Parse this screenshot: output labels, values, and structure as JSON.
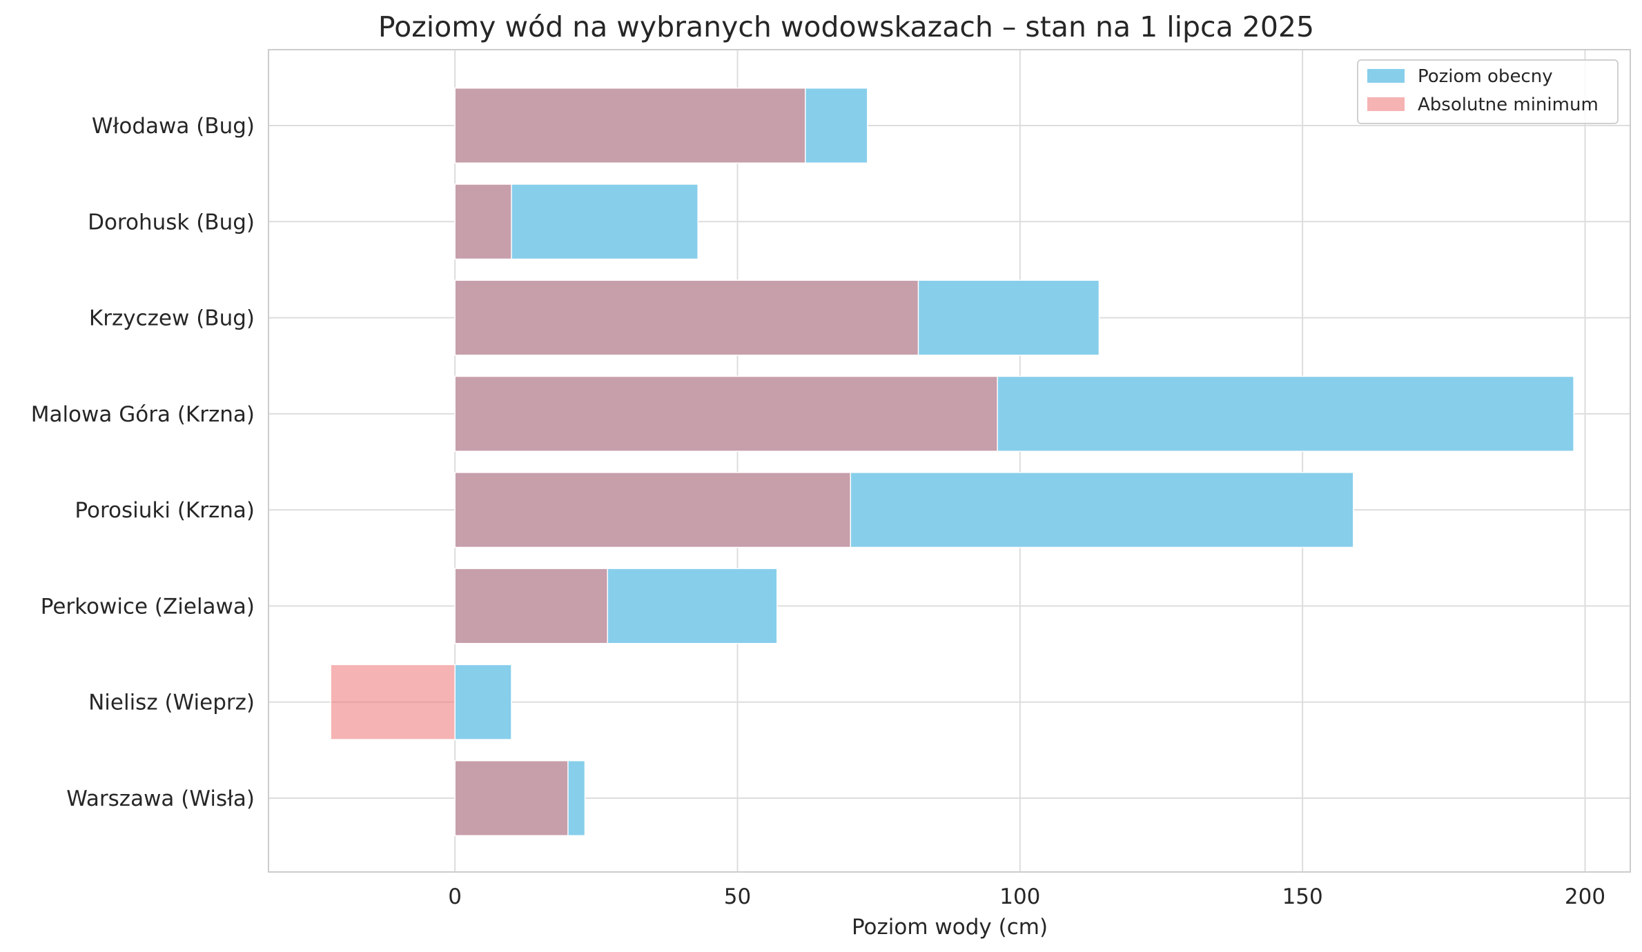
{
  "chart_data": {
    "type": "bar",
    "orientation": "horizontal",
    "title": "Poziomy wód na wybranych wodowskazach – stan na 1 lipca 2025",
    "xlabel": "Poziom wody (cm)",
    "ylabel": "",
    "xlim": [
      -33,
      208
    ],
    "xticks": [
      0,
      50,
      100,
      150,
      200
    ],
    "grid": true,
    "legend_position": "top-right",
    "categories": [
      "Włodawa (Bug)",
      "Dorohusk (Bug)",
      "Krzyczew (Bug)",
      "Malowa Góra (Krzna)",
      "Porosiuki (Krzna)",
      "Perkowice (Zielawa)",
      "Nielisz (Wieprz)",
      "Warszawa (Wisła)"
    ],
    "series": [
      {
        "name": "Poziom obecny",
        "color": "#87ceeb",
        "values": [
          73,
          43,
          114,
          198,
          159,
          57,
          10,
          23
        ]
      },
      {
        "name": "Absolutne minimum",
        "color": "#f08080",
        "values": [
          62,
          10,
          82,
          96,
          70,
          27,
          -22,
          20
        ]
      }
    ]
  }
}
